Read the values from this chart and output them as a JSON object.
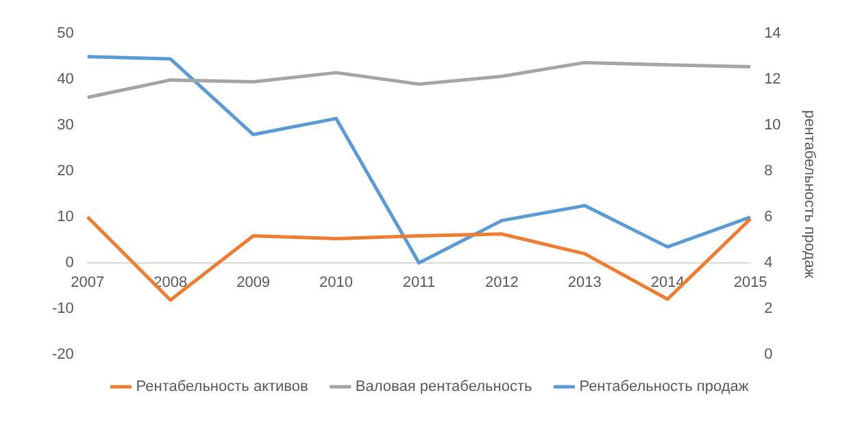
{
  "chart_data": {
    "type": "line",
    "categories": [
      "2007",
      "2008",
      "2009",
      "2010",
      "2011",
      "2012",
      "2013",
      "2014",
      "2015"
    ],
    "series": [
      {
        "name": "Рентабельность активов",
        "color": "#ed7d31",
        "values": [
          10,
          -8.1,
          5.9,
          5.3,
          5.9,
          6.3,
          2,
          -7.9,
          9.6
        ]
      },
      {
        "name": "Валовая рентабельность",
        "color": "#a5a5a5",
        "values": [
          36.1,
          39.9,
          39.5,
          41.5,
          39,
          40.7,
          43.7,
          43.2,
          42.8
        ]
      },
      {
        "name": "Рентабельность продаж",
        "color": "#5b9bd5",
        "axis": "y2",
        "values": [
          13,
          12.9,
          9.6,
          10.3,
          4,
          5.85,
          6.5,
          4.7,
          6
        ]
      }
    ],
    "ylim": [
      -20,
      50
    ],
    "yticks": [
      -20,
      -10,
      0,
      10,
      20,
      30,
      40,
      50
    ],
    "y2lim": [
      0,
      14
    ],
    "y2ticks": [
      0,
      2,
      4,
      6,
      8,
      10,
      12,
      14
    ],
    "y2label": "рентабельность продаж",
    "grid": false,
    "legend": "bottom",
    "marker": "none",
    "line_style": "solid"
  }
}
